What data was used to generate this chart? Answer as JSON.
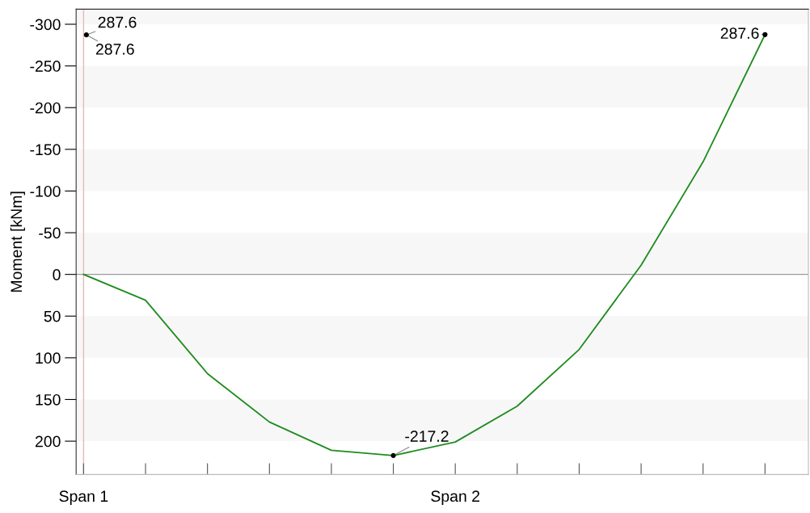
{
  "chart_data": {
    "type": "line",
    "ylabel": "Moment [kNm]",
    "categories": [
      "Span 1",
      null,
      null,
      null,
      null,
      null,
      "Span 2",
      null,
      null,
      null,
      null,
      null
    ],
    "series": [
      {
        "color": "#1e8c1e",
        "values": [
          0,
          31,
          119,
          177,
          211,
          217.2,
          201,
          158,
          90,
          -11,
          -135,
          -287.6
        ]
      },
      {
        "type": "scatter",
        "color": "#000000",
        "values": [
          null,
          null,
          null,
          null,
          null,
          217.2,
          null,
          null,
          null,
          null,
          null,
          -287.6
        ]
      }
    ],
    "annotations": [
      "287.6",
      "287.6",
      "-217.2",
      "287.6"
    ],
    "ylim": [
      240,
      -318
    ],
    "yticks": [
      -300,
      -250,
      -200,
      -150,
      -100,
      -50,
      0,
      50,
      100,
      150,
      200
    ],
    "ref_lines": [
      {
        "axis": "y",
        "value": 0,
        "color": "#999999"
      },
      {
        "axis": "x",
        "value": "Span 1",
        "color": "#e8b8b8"
      }
    ],
    "bands": [
      {
        "axis": "y",
        "from": -318,
        "to": -300,
        "color": "#f7f7f7"
      },
      {
        "axis": "y",
        "from": -250,
        "to": -200,
        "color": "#f7f7f7"
      },
      {
        "axis": "y",
        "from": -150,
        "to": -100,
        "color": "#f7f7f7"
      },
      {
        "axis": "y",
        "from": -50,
        "to": 0,
        "color": "#f7f7f7"
      },
      {
        "axis": "y",
        "from": 50,
        "to": 100,
        "color": "#f7f7f7"
      },
      {
        "axis": "y",
        "from": 150,
        "to": 200,
        "color": "#f7f7f7"
      }
    ],
    "grid": false,
    "legend": false
  }
}
